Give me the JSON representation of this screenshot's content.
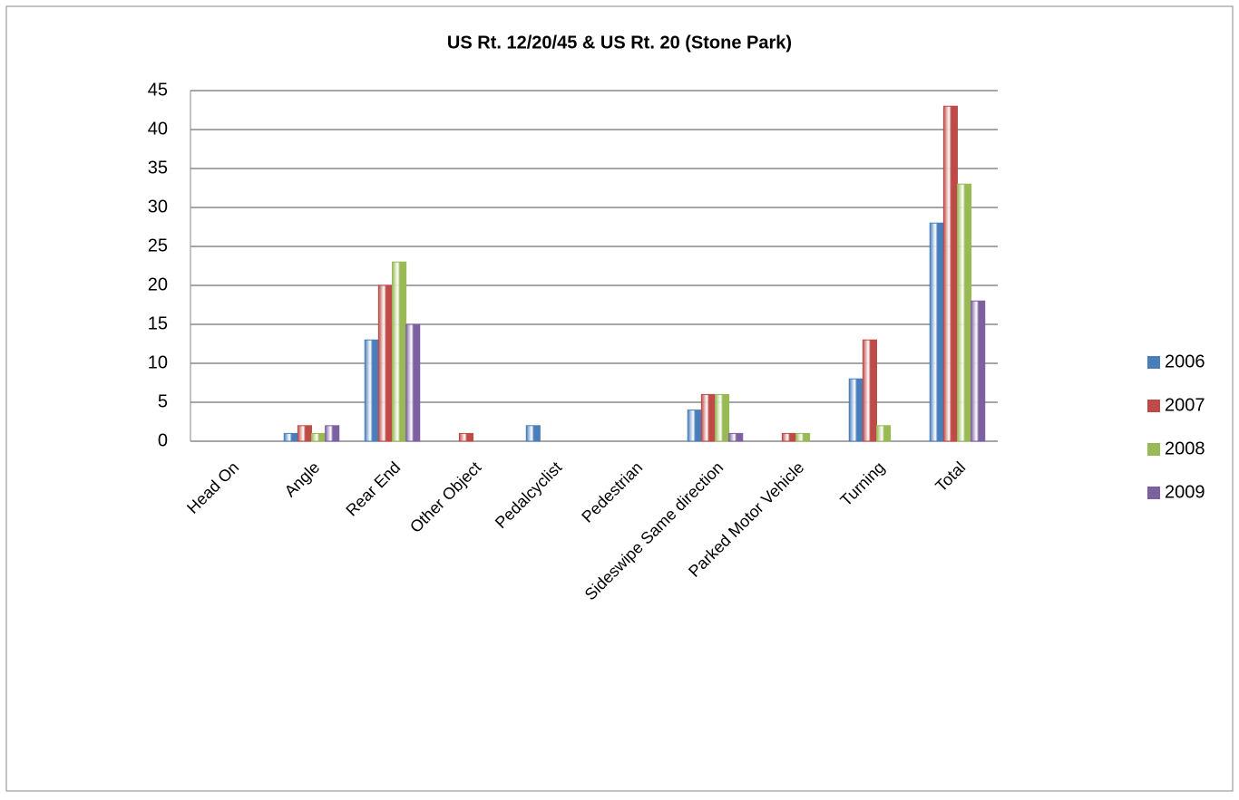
{
  "chart_data": {
    "type": "bar",
    "title": "US Rt. 12/20/45 & US Rt. 20 (Stone Park)",
    "categories": [
      "Head On",
      "Angle",
      "Rear End",
      "Other Object",
      "Pedalcyclist",
      "Pedestrian",
      "Sideswipe Same direction",
      "Parked Motor Vehicle",
      "Turning",
      "Total"
    ],
    "series": [
      {
        "name": "2006",
        "color": "#4a7ebb",
        "values": [
          0,
          1,
          13,
          0,
          2,
          0,
          4,
          0,
          8,
          28
        ]
      },
      {
        "name": "2007",
        "color": "#be4b48",
        "values": [
          0,
          2,
          20,
          1,
          0,
          0,
          6,
          1,
          13,
          43
        ]
      },
      {
        "name": "2008",
        "color": "#98b954",
        "values": [
          0,
          1,
          23,
          0,
          0,
          0,
          6,
          1,
          2,
          33
        ]
      },
      {
        "name": "2009",
        "color": "#7d60a0",
        "values": [
          0,
          2,
          15,
          0,
          0,
          0,
          1,
          0,
          0,
          18
        ]
      }
    ],
    "ylim": [
      0,
      45
    ],
    "yticks": [
      0,
      5,
      10,
      15,
      20,
      25,
      30,
      35,
      40,
      45
    ],
    "grid": true,
    "legend": "right"
  }
}
